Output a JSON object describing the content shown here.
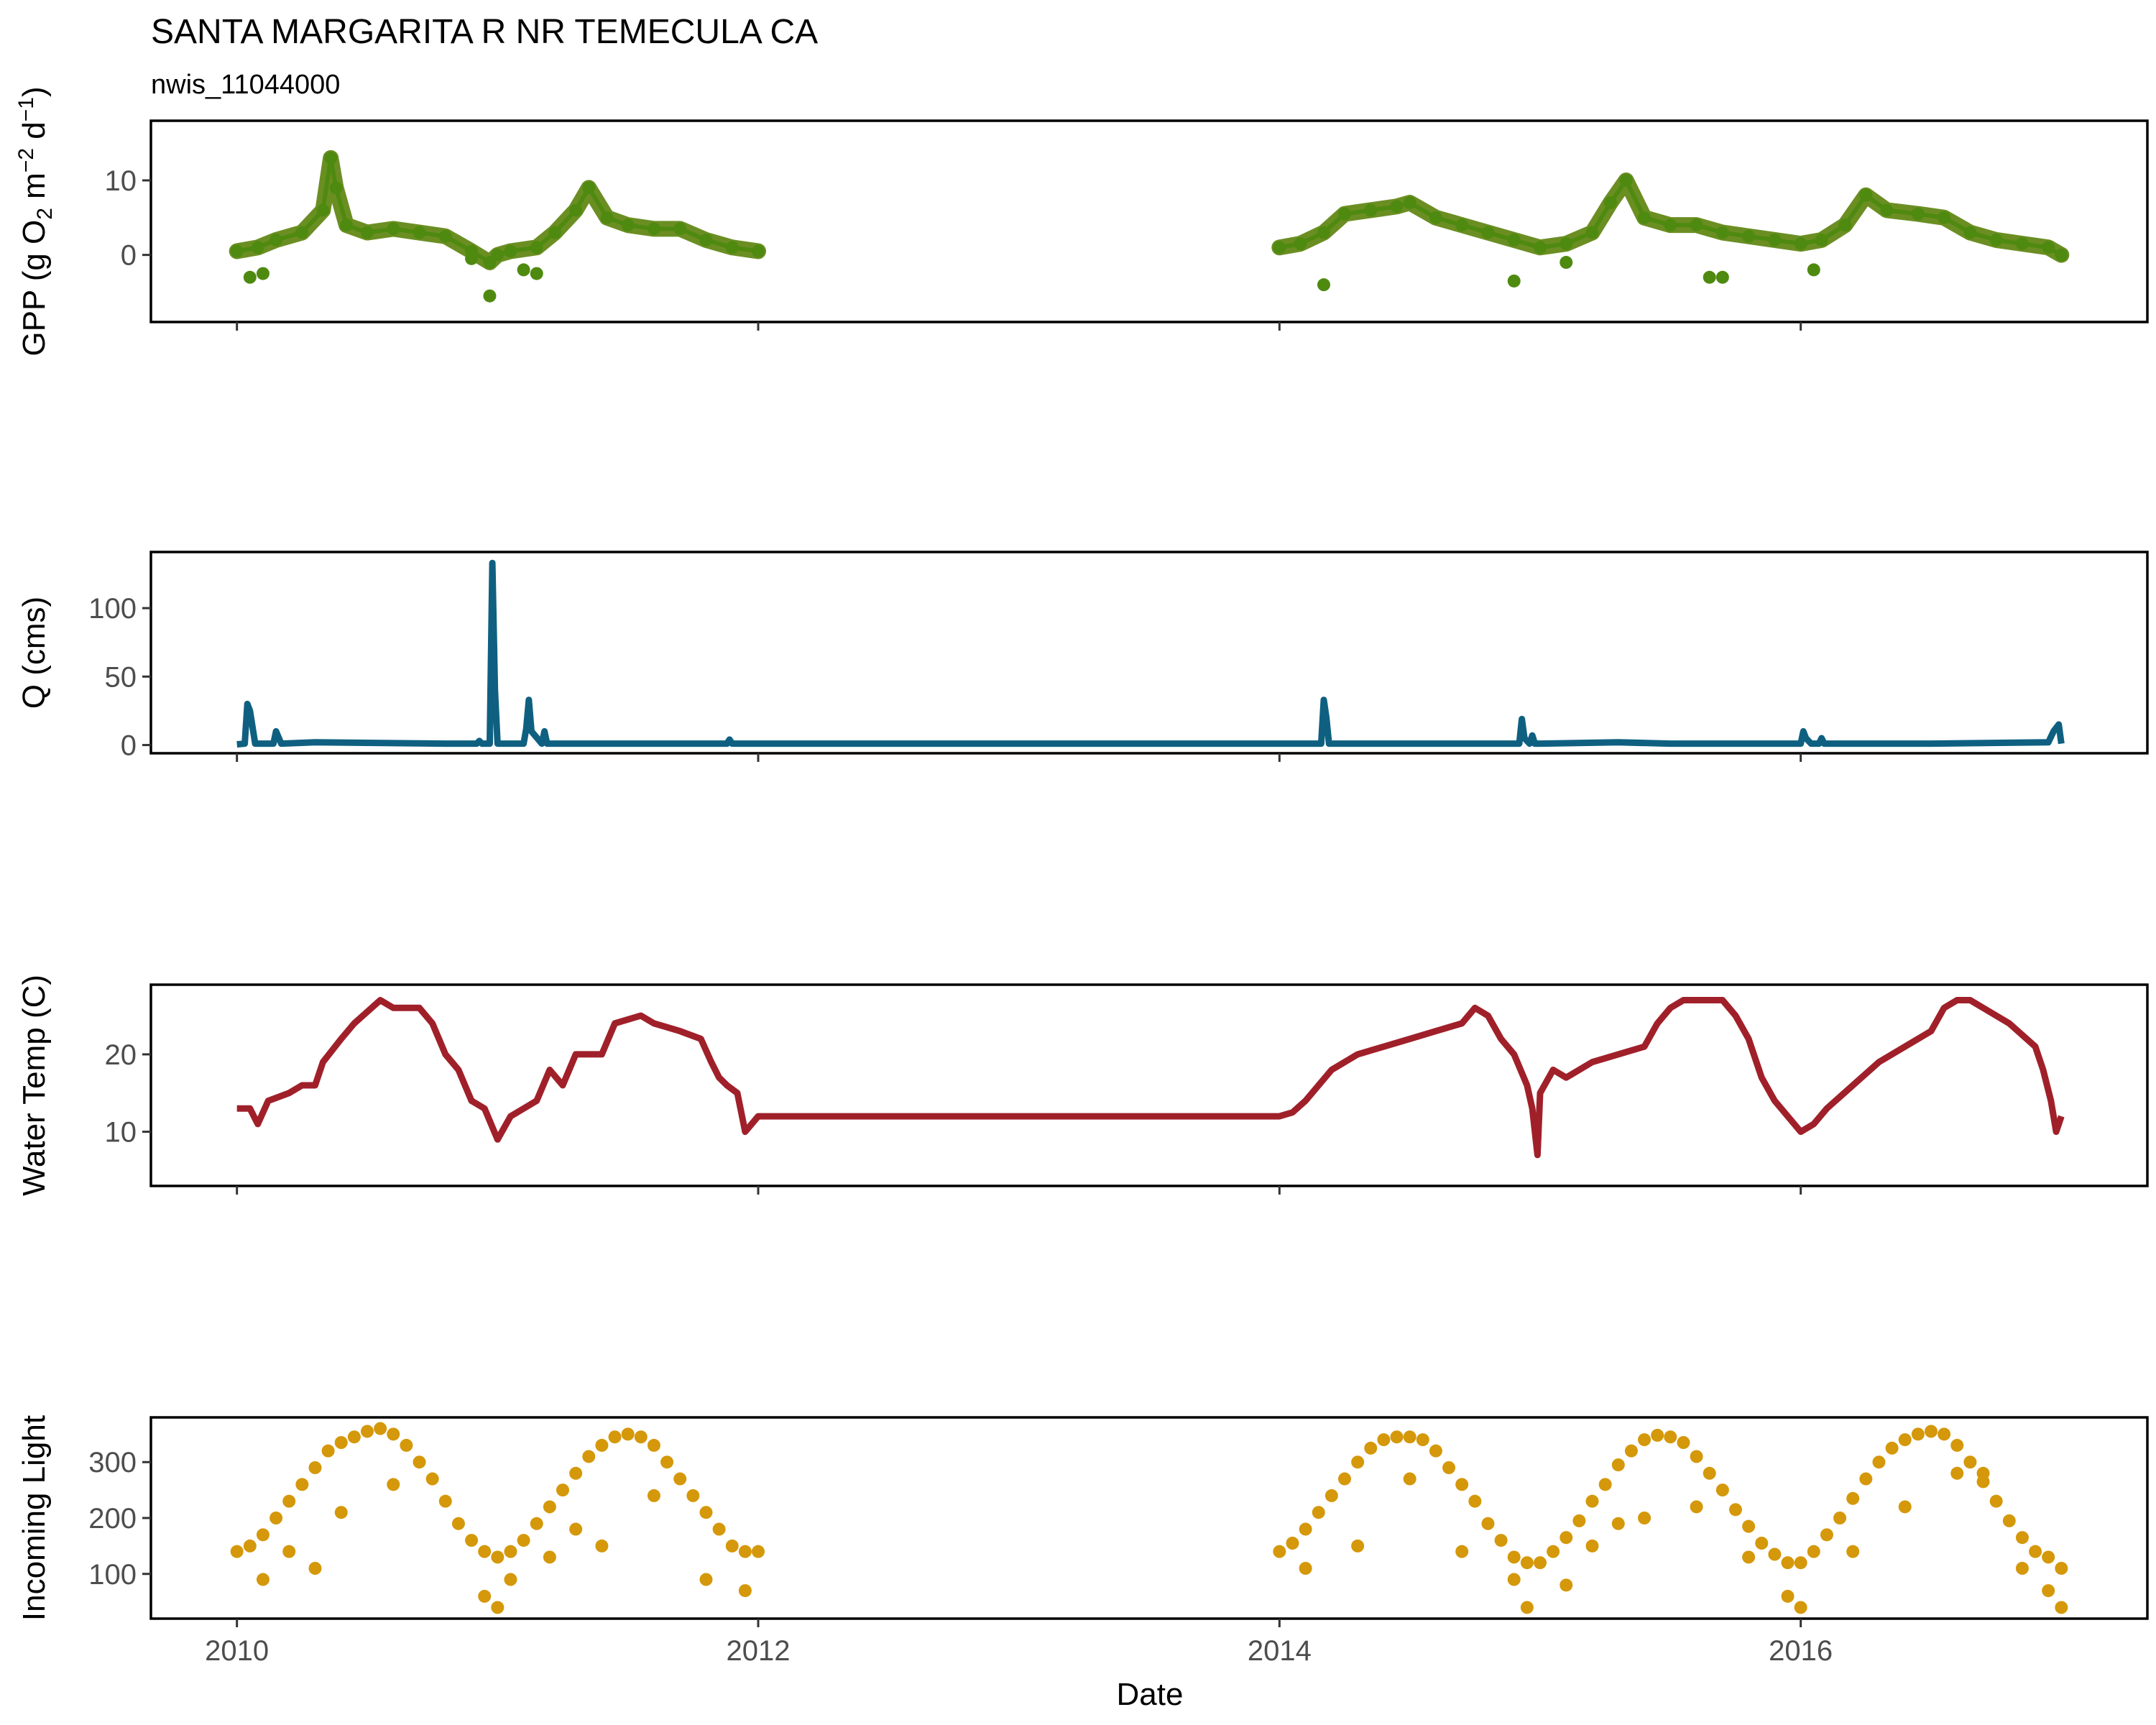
{
  "title": "SANTA MARGARITA R NR TEMECULA CA",
  "subtitle": "nwis_11044000",
  "x_axis": {
    "label": "Date",
    "ticks": [
      "2010",
      "2012",
      "2014",
      "2016"
    ]
  },
  "colors": {
    "gpp": "#4f8a10",
    "gpp_band": "#6b8e23",
    "q": "#0f6080",
    "temp": "#a0202a",
    "light": "#d4980a"
  },
  "chart_data": [
    {
      "type": "scatter",
      "title": "",
      "ylabel": "GPP (g O2 m-2 d-1)",
      "ylabel_parts": {
        "main": "GPP (g  O",
        "sub": "2",
        "mid": " m",
        "sup1": "−2",
        "mid2": " d",
        "sup2": "−1",
        "end": ")"
      },
      "xlim": [
        2009.67,
        2017.33
      ],
      "ylim": [
        -9,
        18
      ],
      "yticks": [
        0,
        10
      ],
      "color": "#4f8a10",
      "series": [
        {
          "name": "",
          "x": [
            2010.0,
            2010.08,
            2010.15,
            2010.25,
            2010.33,
            2010.36,
            2010.38,
            2010.42,
            2010.5,
            2010.6,
            2010.7,
            2010.8,
            2010.9,
            2010.97,
            2011.0,
            2011.05,
            2011.15,
            2011.22,
            2011.3,
            2011.35,
            2011.42,
            2011.5,
            2011.6,
            2011.7,
            2011.8,
            2011.9,
            2012.0,
            2014.0,
            2014.08,
            2014.17,
            2014.25,
            2014.35,
            2014.45,
            2014.5,
            2014.6,
            2014.7,
            2014.8,
            2014.9,
            2015.0,
            2015.1,
            2015.2,
            2015.27,
            2015.33,
            2015.4,
            2015.5,
            2015.6,
            2015.7,
            2015.8,
            2015.9,
            2016.0,
            2016.08,
            2016.17,
            2016.25,
            2016.33,
            2016.45,
            2016.55,
            2016.65,
            2016.75,
            2016.85,
            2016.95,
            2017.0
          ],
          "y": [
            0.5,
            1.0,
            2.0,
            3.0,
            6.0,
            13.0,
            9.0,
            4.0,
            3.0,
            3.5,
            3.0,
            2.5,
            0.5,
            -1.0,
            0.0,
            0.5,
            1.0,
            3.0,
            6.0,
            9.0,
            5.0,
            4.0,
            3.5,
            3.5,
            2.0,
            1.0,
            0.5,
            1.0,
            1.5,
            3.0,
            5.5,
            6.0,
            6.5,
            7.0,
            5.0,
            4.0,
            3.0,
            2.0,
            1.0,
            1.5,
            3.0,
            7.0,
            10.0,
            5.0,
            4.0,
            4.0,
            3.0,
            2.5,
            2.0,
            1.5,
            2.0,
            4.0,
            8.0,
            6.0,
            5.5,
            5.0,
            3.0,
            2.0,
            1.5,
            1.0,
            0.0
          ]
        }
      ],
      "outliers": {
        "x": [
          2010.05,
          2010.1,
          2010.9,
          2010.97,
          2011.1,
          2011.15,
          2014.17,
          2014.9,
          2015.1,
          2015.65,
          2015.7,
          2016.05
        ],
        "y": [
          -3.0,
          -2.5,
          -0.5,
          -5.5,
          -2.0,
          -2.5,
          -4.0,
          -3.5,
          -1.0,
          -3.0,
          -3.0,
          -2.0
        ]
      }
    },
    {
      "type": "line",
      "title": "",
      "ylabel": "Q (cms)",
      "xlim": [
        2009.67,
        2017.33
      ],
      "ylim": [
        -6,
        141
      ],
      "yticks": [
        0,
        50,
        100
      ],
      "color": "#0f6080",
      "series": [
        {
          "name": "",
          "x": [
            2010.0,
            2010.03,
            2010.04,
            2010.05,
            2010.07,
            2010.1,
            2010.14,
            2010.15,
            2010.17,
            2010.3,
            2010.8,
            2010.92,
            2010.93,
            2010.94,
            2010.97,
            2010.98,
            2010.99,
            2011.0,
            2011.01,
            2011.05,
            2011.1,
            2011.11,
            2011.12,
            2011.13,
            2011.17,
            2011.18,
            2011.19,
            2011.3,
            2011.5,
            2011.88,
            2011.89,
            2011.9,
            2011.95,
            2012.0,
            2014.0,
            2014.16,
            2014.17,
            2014.18,
            2014.19,
            2014.5,
            2014.92,
            2014.93,
            2014.94,
            2014.96,
            2014.97,
            2014.98,
            2015.0,
            2015.3,
            2015.5,
            2015.9,
            2016.0,
            2016.01,
            2016.02,
            2016.04,
            2016.07,
            2016.08,
            2016.09,
            2016.5,
            2016.95,
            2016.97,
            2016.99,
            2017.0
          ],
          "y": [
            0.5,
            1,
            30,
            25,
            1,
            1,
            1,
            10,
            1,
            2,
            1,
            1,
            3,
            1,
            1,
            133,
            40,
            1,
            1,
            1,
            1,
            12,
            33,
            10,
            1,
            10,
            1,
            1,
            1,
            1,
            4,
            1,
            1,
            1,
            1,
            1,
            33,
            20,
            1,
            1,
            1,
            19,
            5,
            1,
            7,
            1,
            1,
            2,
            1,
            1,
            1,
            10,
            5,
            1,
            1,
            5,
            1,
            1,
            2,
            10,
            15,
            1
          ]
        }
      ]
    },
    {
      "type": "line",
      "title": "",
      "ylabel": "Water Temp (C)",
      "xlim": [
        2009.67,
        2017.33
      ],
      "ylim": [
        3,
        29
      ],
      "yticks": [
        10,
        20
      ],
      "color": "#a0202a",
      "series": [
        {
          "name": "",
          "x": [
            2010.0,
            2010.05,
            2010.08,
            2010.12,
            2010.2,
            2010.25,
            2010.3,
            2010.33,
            2010.4,
            2010.45,
            2010.5,
            2010.55,
            2010.6,
            2010.7,
            2010.75,
            2010.8,
            2010.85,
            2010.9,
            2010.95,
            2011.0,
            2011.05,
            2011.1,
            2011.15,
            2011.2,
            2011.25,
            2011.3,
            2011.4,
            2011.45,
            2011.55,
            2011.6,
            2011.7,
            2011.78,
            2011.82,
            2011.85,
            2011.88,
            2011.92,
            2011.95,
            2012.0,
            2013.0,
            2014.0,
            2014.05,
            2014.1,
            2014.2,
            2014.3,
            2014.4,
            2014.5,
            2014.6,
            2014.7,
            2014.75,
            2014.8,
            2014.85,
            2014.9,
            2014.95,
            2014.97,
            2014.99,
            2015.0,
            2015.05,
            2015.1,
            2015.15,
            2015.2,
            2015.3,
            2015.4,
            2015.45,
            2015.5,
            2015.55,
            2015.6,
            2015.7,
            2015.75,
            2015.8,
            2015.85,
            2015.9,
            2016.0,
            2016.05,
            2016.1,
            2016.2,
            2016.3,
            2016.4,
            2016.5,
            2016.55,
            2016.6,
            2016.65,
            2016.7,
            2016.8,
            2016.9,
            2016.93,
            2016.96,
            2016.98,
            2017.0
          ],
          "y": [
            13,
            13,
            11,
            14,
            15,
            16,
            16,
            19,
            22,
            24,
            25.5,
            27,
            26,
            26,
            24,
            20,
            18,
            14,
            13,
            9,
            12,
            13,
            14,
            18,
            16,
            20,
            20,
            24,
            25,
            24,
            23,
            22,
            19,
            17,
            16,
            15,
            10,
            12,
            12,
            12,
            12.5,
            14,
            18,
            20,
            21,
            22,
            23,
            24,
            26,
            25,
            22,
            20,
            16,
            13,
            7,
            15,
            18,
            17,
            18,
            19,
            20,
            21,
            24,
            26,
            27,
            27,
            27,
            25,
            22,
            17,
            14,
            10,
            11,
            13,
            16,
            19,
            21,
            23,
            26,
            27,
            27,
            26,
            24,
            21,
            18,
            14,
            10,
            12
          ]
        }
      ]
    },
    {
      "type": "scatter",
      "title": "",
      "ylabel": "Incoming Light",
      "xlim": [
        2009.67,
        2017.33
      ],
      "ylim": [
        20,
        380
      ],
      "yticks": [
        100,
        200,
        300
      ],
      "color": "#d4980a",
      "series": [
        {
          "name": "",
          "x": [
            2010.0,
            2010.05,
            2010.1,
            2010.15,
            2010.2,
            2010.25,
            2010.3,
            2010.35,
            2010.4,
            2010.45,
            2010.5,
            2010.55,
            2010.6,
            2010.65,
            2010.7,
            2010.75,
            2010.8,
            2010.85,
            2010.9,
            2010.95,
            2011.0,
            2011.05,
            2011.1,
            2011.15,
            2011.2,
            2011.25,
            2011.3,
            2011.35,
            2011.4,
            2011.45,
            2011.5,
            2011.55,
            2011.6,
            2011.65,
            2011.7,
            2011.75,
            2011.8,
            2011.85,
            2011.9,
            2011.95,
            2012.0,
            2014.0,
            2014.05,
            2014.1,
            2014.15,
            2014.2,
            2014.25,
            2014.3,
            2014.35,
            2014.4,
            2014.45,
            2014.5,
            2014.55,
            2014.6,
            2014.65,
            2014.7,
            2014.75,
            2014.8,
            2014.85,
            2014.9,
            2014.95,
            2015.0,
            2015.05,
            2015.1,
            2015.15,
            2015.2,
            2015.25,
            2015.3,
            2015.35,
            2015.4,
            2015.45,
            2015.5,
            2015.55,
            2015.6,
            2015.65,
            2015.7,
            2015.75,
            2015.8,
            2015.85,
            2015.9,
            2015.95,
            2016.0,
            2016.05,
            2016.1,
            2016.15,
            2016.2,
            2016.25,
            2016.3,
            2016.35,
            2016.4,
            2016.45,
            2016.5,
            2016.55,
            2016.6,
            2016.65,
            2016.7,
            2016.75,
            2016.8,
            2016.85,
            2016.9,
            2016.95,
            2017.0
          ],
          "y": [
            140,
            150,
            170,
            200,
            230,
            260,
            290,
            320,
            335,
            345,
            355,
            360,
            350,
            330,
            300,
            270,
            230,
            190,
            160,
            140,
            130,
            140,
            160,
            190,
            220,
            250,
            280,
            310,
            330,
            345,
            350,
            345,
            330,
            300,
            270,
            240,
            210,
            180,
            150,
            140,
            140,
            140,
            155,
            180,
            210,
            240,
            270,
            300,
            325,
            340,
            345,
            345,
            340,
            320,
            290,
            260,
            230,
            190,
            160,
            130,
            120,
            120,
            140,
            165,
            195,
            230,
            260,
            295,
            320,
            340,
            348,
            345,
            335,
            310,
            280,
            250,
            215,
            185,
            155,
            135,
            120,
            120,
            140,
            170,
            200,
            235,
            270,
            300,
            325,
            340,
            350,
            355,
            350,
            330,
            300,
            265,
            230,
            195,
            165,
            140,
            130,
            110
          ],
          "scatter_low": {
            "x": [
              2010.1,
              2010.2,
              2010.3,
              2010.4,
              2010.6,
              2010.95,
              2011.0,
              2011.05,
              2011.2,
              2011.3,
              2011.4,
              2011.6,
              2011.8,
              2011.95,
              2014.1,
              2014.3,
              2014.5,
              2014.7,
              2014.9,
              2014.95,
              2015.1,
              2015.2,
              2015.3,
              2015.4,
              2015.6,
              2015.8,
              2015.95,
              2016.0,
              2016.2,
              2016.4,
              2016.6,
              2016.7,
              2016.85,
              2016.95,
              2017.0
            ],
            "y": [
              90,
              140,
              110,
              210,
              260,
              60,
              40,
              90,
              130,
              180,
              150,
              240,
              90,
              70,
              110,
              150,
              270,
              140,
              90,
              40,
              80,
              150,
              190,
              200,
              220,
              130,
              60,
              40,
              140,
              220,
              280,
              280,
              110,
              70,
              40
            ]
          }
        }
      ]
    }
  ]
}
